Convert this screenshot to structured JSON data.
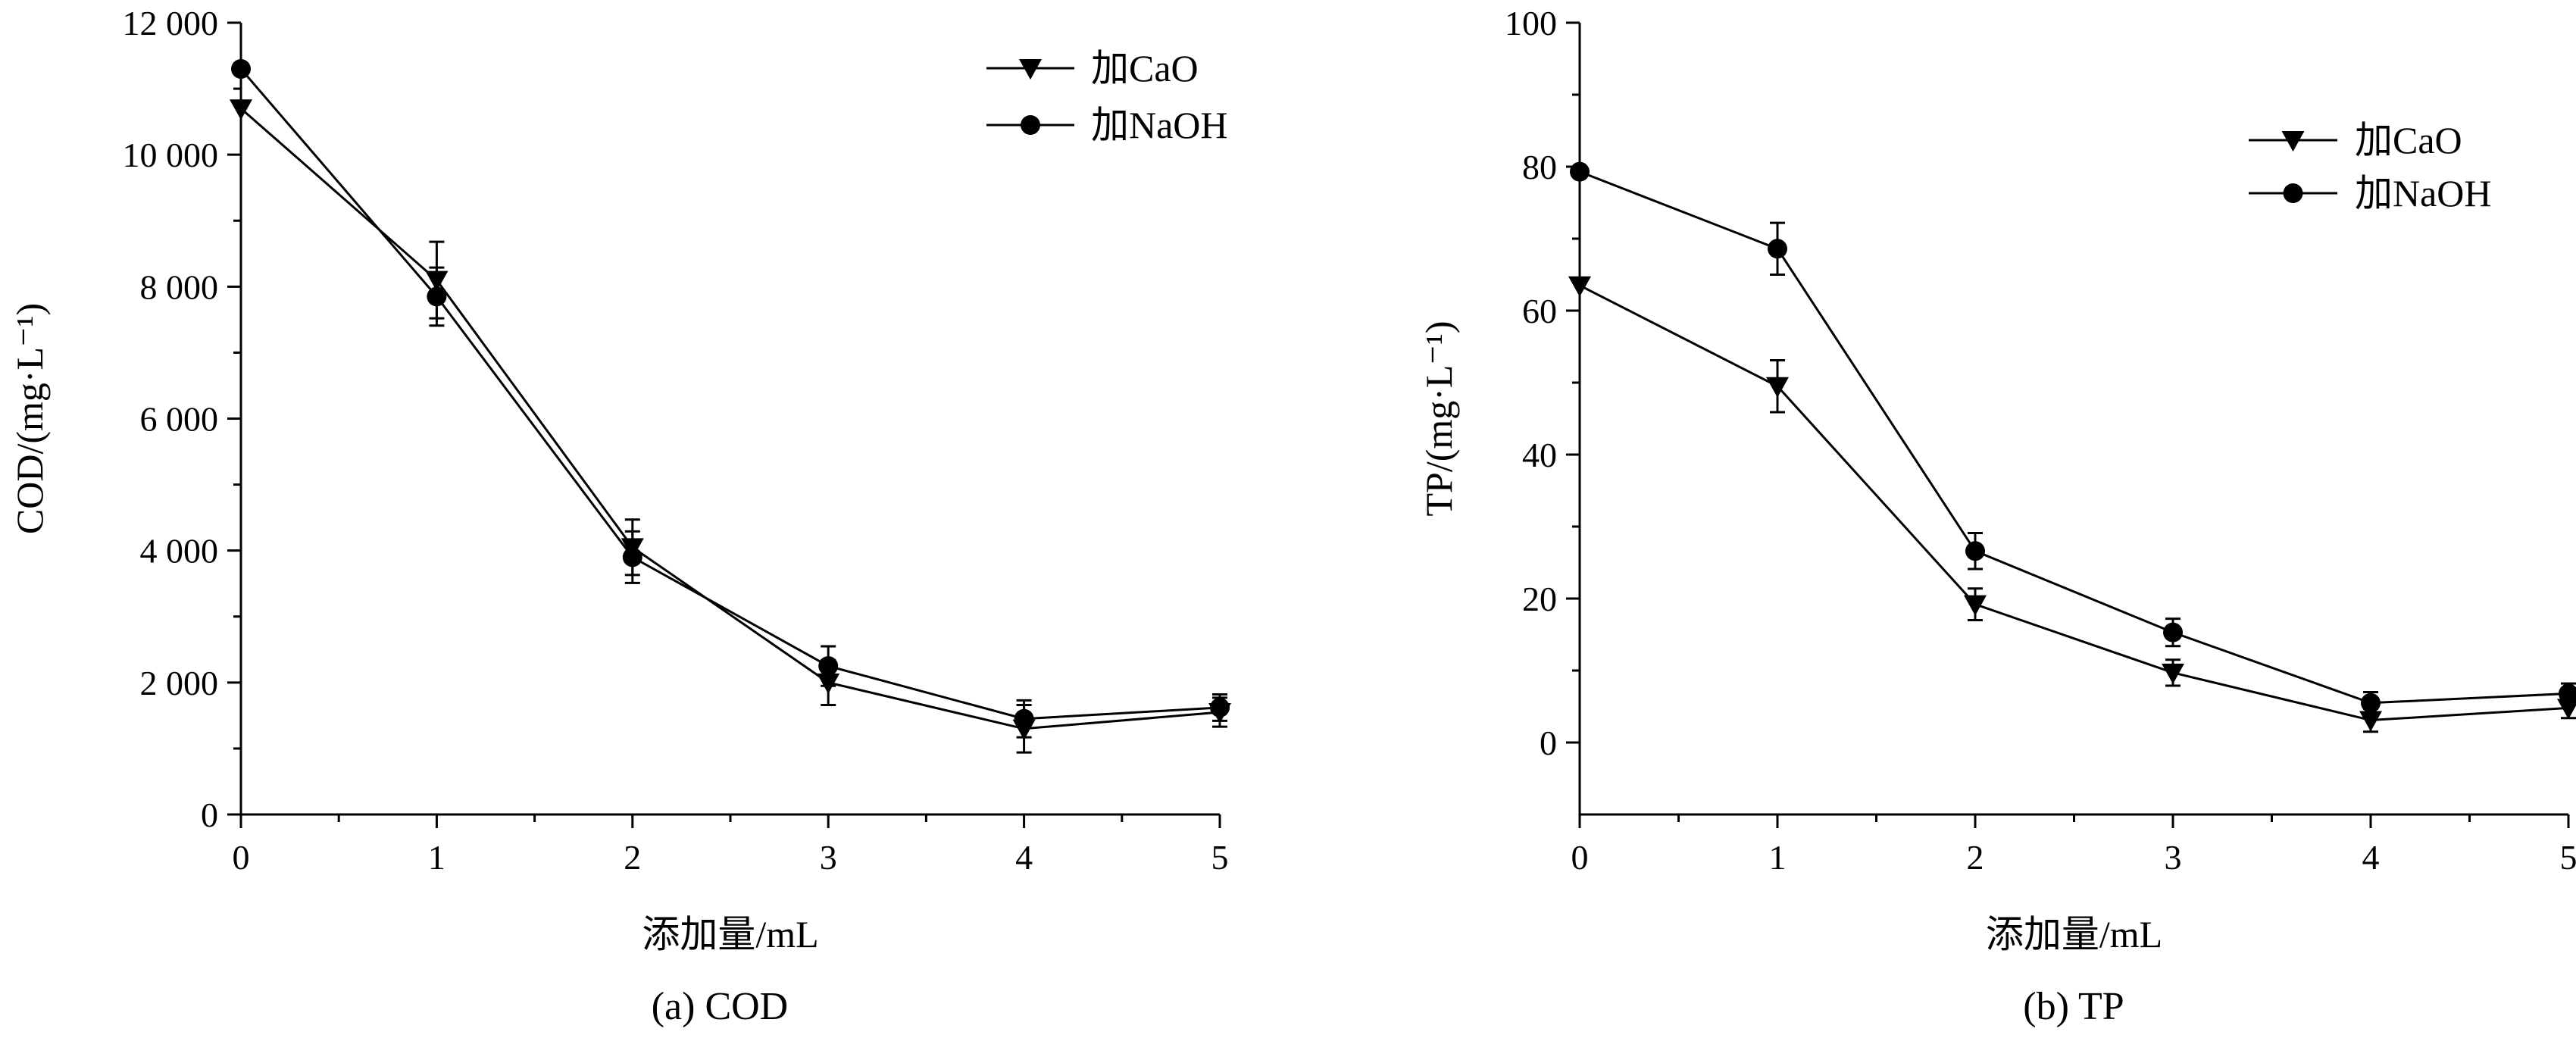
{
  "chart_data": [
    {
      "type": "line",
      "caption": "(a) COD",
      "xlabel": "添加量/mL",
      "ylabel": "COD/(mg·L⁻¹)",
      "xlim": [
        0,
        5
      ],
      "ylim": [
        0,
        12000
      ],
      "x_ticks": [
        0,
        1,
        2,
        3,
        4,
        5
      ],
      "x_tick_labels": [
        "0",
        "1",
        "2",
        "3",
        "4",
        "5"
      ],
      "y_ticks": [
        0,
        2000,
        4000,
        6000,
        8000,
        10000,
        12000
      ],
      "y_tick_labels": [
        "0",
        "2 000",
        "4 000",
        "6 000",
        "8 000",
        "10 000",
        "12 000"
      ],
      "grid": false,
      "legend_position": "top-right",
      "x": [
        0,
        1,
        2,
        3,
        4,
        5
      ],
      "series": [
        {
          "name": "加CaO",
          "marker": "triangle-down",
          "values": [
            10700,
            8100,
            4050,
            2000,
            1300,
            1550
          ],
          "errors": [
            0,
            580,
            420,
            340,
            360,
            220
          ]
        },
        {
          "name": "加NaOH",
          "marker": "circle",
          "values": [
            11300,
            7850,
            3900,
            2250,
            1450,
            1620
          ],
          "errors": [
            0,
            440,
            390,
            300,
            280,
            200
          ]
        }
      ]
    },
    {
      "type": "line",
      "caption": "(b) TP",
      "xlabel": "添加量/mL",
      "ylabel": "TP/(mg·L⁻¹)",
      "xlim": [
        0,
        5
      ],
      "ylim": [
        -10,
        100
      ],
      "x_ticks": [
        0,
        1,
        2,
        3,
        4,
        5
      ],
      "x_tick_labels": [
        "0",
        "1",
        "2",
        "3",
        "4",
        "5"
      ],
      "y_ticks": [
        0,
        20,
        40,
        60,
        80,
        100
      ],
      "y_tick_labels": [
        "0",
        "20",
        "40",
        "60",
        "80",
        "100"
      ],
      "grid": false,
      "legend_position": "top-right",
      "x": [
        0,
        1,
        2,
        3,
        4,
        5
      ],
      "series": [
        {
          "name": "加CaO",
          "marker": "triangle-down",
          "values": [
            63.5,
            49.5,
            19.2,
            9.7,
            3.1,
            4.8
          ],
          "errors": [
            0,
            3.6,
            2.2,
            1.8,
            1.6,
            1.4
          ]
        },
        {
          "name": "加NaOH",
          "marker": "circle",
          "values": [
            79.3,
            68.6,
            26.6,
            15.3,
            5.5,
            6.8
          ],
          "errors": [
            0,
            3.6,
            2.5,
            1.9,
            1.5,
            1.4
          ]
        }
      ]
    }
  ]
}
